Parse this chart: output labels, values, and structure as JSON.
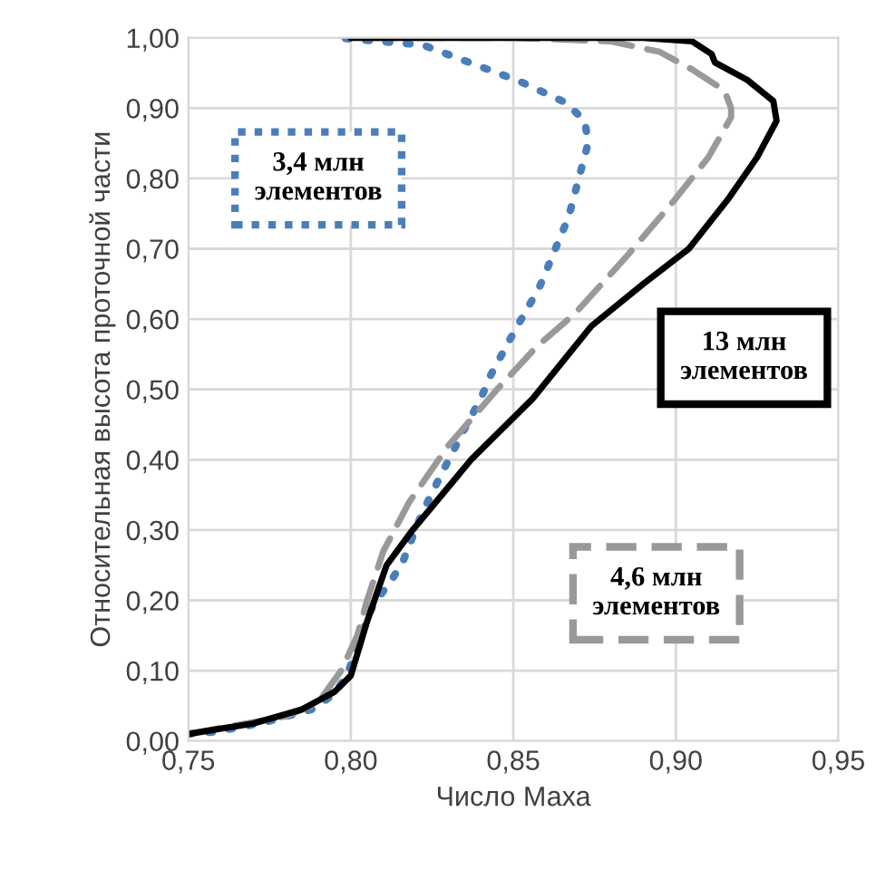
{
  "chart_data": {
    "type": "line",
    "xlabel": "Число Маха",
    "ylabel": "Относительная высота проточной части",
    "xlim": [
      0.75,
      0.95
    ],
    "ylim": [
      0,
      1
    ],
    "xticks": [
      {
        "value": 0.75,
        "label": "0,75"
      },
      {
        "value": 0.8,
        "label": "0,80"
      },
      {
        "value": 0.85,
        "label": "0,85"
      },
      {
        "value": 0.9,
        "label": "0,90"
      },
      {
        "value": 0.95,
        "label": "0,95"
      }
    ],
    "yticks": [
      {
        "value": 0,
        "label": "0,00"
      },
      {
        "value": 0.1,
        "label": "0,10"
      },
      {
        "value": 0.2,
        "label": "0,20"
      },
      {
        "value": 0.3,
        "label": "0,30"
      },
      {
        "value": 0.4,
        "label": "0,40"
      },
      {
        "value": 0.5,
        "label": "0,50"
      },
      {
        "value": 0.6,
        "label": "0,60"
      },
      {
        "value": 0.7,
        "label": "0,70"
      },
      {
        "value": 0.8,
        "label": "0,80"
      },
      {
        "value": 0.9,
        "label": "0,90"
      },
      {
        "value": 1,
        "label": "1,00"
      }
    ],
    "grid": true,
    "legend": false,
    "marker": "none",
    "series": [
      {
        "name": "3,4 млн элементов",
        "color": "#4a7ebb",
        "line_style": "dotted",
        "x": [
          0.75,
          0.758,
          0.773,
          0.788,
          0.795,
          0.799,
          0.804,
          0.807,
          0.812,
          0.816,
          0.822,
          0.829,
          0.836,
          0.84,
          0.843,
          0.85,
          0.858,
          0.867,
          0.873,
          0.872,
          0.866,
          0.852,
          0.837,
          0.822,
          0.796
        ],
        "values": [
          0.01,
          0.013,
          0.026,
          0.045,
          0.067,
          0.096,
          0.16,
          0.195,
          0.225,
          0.255,
          0.325,
          0.39,
          0.453,
          0.487,
          0.52,
          0.58,
          0.645,
          0.745,
          0.85,
          0.882,
          0.908,
          0.938,
          0.964,
          0.99,
          1.0
        ]
      },
      {
        "name": "4,6 млн элементов",
        "color": "#999999",
        "line_style": "dashed",
        "x": [
          0.75,
          0.78,
          0.79,
          0.797,
          0.802,
          0.805,
          0.81,
          0.818,
          0.83,
          0.845,
          0.857,
          0.869,
          0.885,
          0.899,
          0.91,
          0.917,
          0.917,
          0.915,
          0.905,
          0.895,
          0.88,
          0.85,
          0.8
        ],
        "values": [
          0.01,
          0.035,
          0.055,
          0.1,
          0.15,
          0.2,
          0.27,
          0.34,
          0.42,
          0.5,
          0.56,
          0.608,
          0.69,
          0.766,
          0.83,
          0.887,
          0.9,
          0.925,
          0.955,
          0.98,
          0.995,
          1.0,
          1.0
        ]
      },
      {
        "name": "13 млн элементов",
        "color": "#000000",
        "line_style": "solid",
        "x": [
          0.75,
          0.77,
          0.785,
          0.795,
          0.8,
          0.805,
          0.811,
          0.819,
          0.837,
          0.856,
          0.874,
          0.89,
          0.904,
          0.916,
          0.925,
          0.931,
          0.93,
          0.922,
          0.912,
          0.911,
          0.905,
          0.89,
          0.8
        ],
        "values": [
          0.01,
          0.025,
          0.045,
          0.07,
          0.093,
          0.17,
          0.25,
          0.3,
          0.4,
          0.487,
          0.59,
          0.65,
          0.7,
          0.77,
          0.83,
          0.882,
          0.91,
          0.94,
          0.965,
          0.977,
          0.995,
          1.0,
          1.0
        ]
      }
    ]
  }
}
